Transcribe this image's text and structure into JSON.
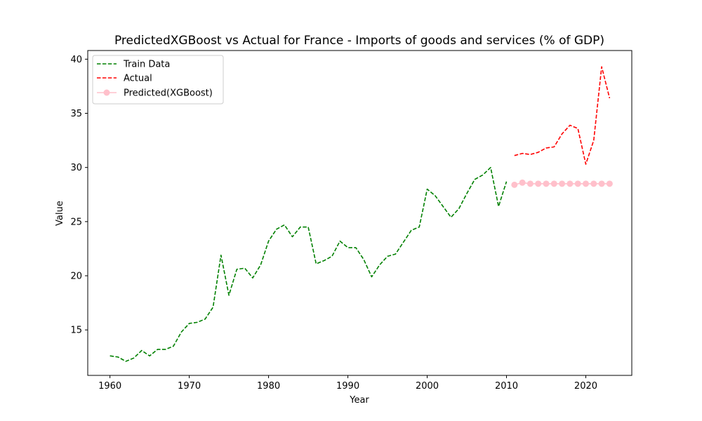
{
  "chart_data": {
    "type": "line",
    "title": "PredictedXGBoost vs Actual for France - Imports of goods and services (% of GDP)",
    "xlabel": "Year",
    "ylabel": "Value",
    "xlim": [
      1957.2,
      2025.8
    ],
    "ylim": [
      10.8,
      40.8
    ],
    "xticks": [
      1960,
      1970,
      1980,
      1990,
      2000,
      2010,
      2020
    ],
    "yticks": [
      15,
      20,
      25,
      30,
      35,
      40
    ],
    "legend_position": "top-left",
    "series": [
      {
        "name": "Train Data",
        "color": "#008000",
        "style": "dashed",
        "x": [
          1960,
          1961,
          1962,
          1963,
          1964,
          1965,
          1966,
          1967,
          1968,
          1969,
          1970,
          1971,
          1972,
          1973,
          1974,
          1975,
          1976,
          1977,
          1978,
          1979,
          1980,
          1981,
          1982,
          1983,
          1984,
          1985,
          1986,
          1987,
          1988,
          1989,
          1990,
          1991,
          1992,
          1993,
          1994,
          1995,
          1996,
          1997,
          1998,
          1999,
          2000,
          2001,
          2002,
          2003,
          2004,
          2005,
          2006,
          2007,
          2008,
          2009,
          2010
        ],
        "values": [
          12.6,
          12.5,
          12.1,
          12.4,
          13.1,
          12.6,
          13.2,
          13.2,
          13.5,
          14.8,
          15.6,
          15.7,
          16.0,
          17.1,
          21.9,
          18.2,
          20.6,
          20.7,
          19.8,
          21.0,
          23.2,
          24.3,
          24.7,
          23.6,
          24.5,
          24.5,
          21.1,
          21.4,
          21.8,
          23.2,
          22.6,
          22.6,
          21.5,
          19.9,
          21.0,
          21.8,
          22.0,
          23.1,
          24.2,
          24.5,
          28.0,
          27.4,
          26.4,
          25.4,
          26.2,
          27.6,
          28.9,
          29.3,
          30.0,
          26.4,
          28.7
        ]
      },
      {
        "name": "Actual",
        "color": "#ff0000",
        "style": "dashed",
        "x": [
          2011,
          2012,
          2013,
          2014,
          2015,
          2016,
          2017,
          2018,
          2019,
          2020,
          2021,
          2022,
          2023
        ],
        "values": [
          31.1,
          31.3,
          31.2,
          31.4,
          31.8,
          31.9,
          33.1,
          33.9,
          33.6,
          30.3,
          32.5,
          39.3,
          36.4
        ]
      },
      {
        "name": "Predicted(XGBoost)",
        "color": "#ffc0cb",
        "style": "solid-markers",
        "x": [
          2011,
          2012,
          2013,
          2014,
          2015,
          2016,
          2017,
          2018,
          2019,
          2020,
          2021,
          2022,
          2023
        ],
        "values": [
          28.4,
          28.6,
          28.5,
          28.5,
          28.5,
          28.5,
          28.5,
          28.5,
          28.5,
          28.5,
          28.5,
          28.5,
          28.5
        ]
      }
    ]
  }
}
